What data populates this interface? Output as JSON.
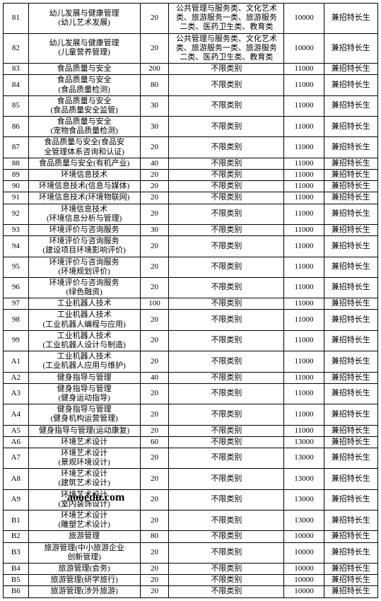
{
  "watermark": "aooedu.com",
  "rows": [
    {
      "id": "81",
      "major": "幼儿发展与健康管理\n(幼儿艺术发展)",
      "quota": "20",
      "category": "公共管理与服务类、文化艺术\n类、旅游服务一类、旅游服务\n二类、医药卫生类、教育类",
      "fee": "10000",
      "note": "兼招特长生"
    },
    {
      "id": "82",
      "major": "幼儿发展与健康管理\n(儿童营养管理)",
      "quota": "20",
      "category": "公共管理与服务类、文化艺术\n类、旅游服务一类、旅游服务\n二类、医药卫生类、教育类",
      "fee": "10000",
      "note": "兼招特长生"
    },
    {
      "id": "83",
      "major": "食品质量与安全",
      "quota": "200",
      "category": "不限类别",
      "fee": "11000",
      "note": "兼招特长生"
    },
    {
      "id": "84",
      "major": "食品质量与安全\n(食品质量检测)",
      "quota": "80",
      "category": "不限类别",
      "fee": "11000",
      "note": "兼招特长生"
    },
    {
      "id": "85",
      "major": "食品质量与安全\n(食品质量安全监管)",
      "quota": "30",
      "category": "不限类别",
      "fee": "11000",
      "note": "兼招特长生"
    },
    {
      "id": "86",
      "major": "食品质量与安全\n(宠物食品质量检测)",
      "quota": "30",
      "category": "不限类别",
      "fee": "11000",
      "note": "兼招特长生"
    },
    {
      "id": "87",
      "major": "食品质量与安全(食品安\n全管理体系咨询和认证)",
      "quota": "20",
      "category": "不限类别",
      "fee": "11000",
      "note": "兼招特长生"
    },
    {
      "id": "88",
      "major": "食品质量与安全(有机产业)",
      "quota": "40",
      "category": "不限类别",
      "fee": "11000",
      "note": "兼招特长生"
    },
    {
      "id": "89",
      "major": "环境信息技术",
      "quota": "20",
      "category": "不限类别",
      "fee": "11000",
      "note": "兼招特长生"
    },
    {
      "id": "90",
      "major": "环境信息技术(信息与媒体)",
      "quota": "20",
      "category": "不限类别",
      "fee": "11000",
      "note": "兼招特长生"
    },
    {
      "id": "91",
      "major": "环境信息技术(环境物联网)",
      "quota": "20",
      "category": "不限类别",
      "fee": "11000",
      "note": "兼招特长生"
    },
    {
      "id": "92",
      "major": "环境信息技术\n(环境信息分析与管理)",
      "quota": "20",
      "category": "不限类别",
      "fee": "11000",
      "note": "兼招特长生"
    },
    {
      "id": "93",
      "major": "环境评价与咨询服务",
      "quota": "30",
      "category": "不限类别",
      "fee": "11000",
      "note": "兼招特长生"
    },
    {
      "id": "94",
      "major": "环境评价与咨询服务\n(建设项目环境影响评价)",
      "quota": "20",
      "category": "不限类别",
      "fee": "11000",
      "note": "兼招特长生"
    },
    {
      "id": "95",
      "major": "环境评价与咨询服务\n(环境规划评价)",
      "quota": "20",
      "category": "不限类别",
      "fee": "11000",
      "note": "兼招特长生"
    },
    {
      "id": "96",
      "major": "环境评价与咨询服务\n(绿色融资)",
      "quota": "20",
      "category": "不限类别",
      "fee": "11000",
      "note": "兼招特长生"
    },
    {
      "id": "97",
      "major": "工业机器人技术",
      "quota": "100",
      "category": "不限类别",
      "fee": "11000",
      "note": "兼招特长生"
    },
    {
      "id": "98",
      "major": "工业机器人技术\n(工业机器人编程与应用)",
      "quota": "20",
      "category": "不限类别",
      "fee": "11000",
      "note": "兼招特长生"
    },
    {
      "id": "99",
      "major": "工业机器人技术\n(工业机器人设计与制造)",
      "quota": "20",
      "category": "不限类别",
      "fee": "11000",
      "note": "兼招特长生"
    },
    {
      "id": "A1",
      "major": "工业机器人技术\n(工业机器人应用与维护)",
      "quota": "20",
      "category": "不限类别",
      "fee": "11000",
      "note": "兼招特长生"
    },
    {
      "id": "A2",
      "major": "健身指导与管理",
      "quota": "40",
      "category": "不限类别",
      "fee": "11000",
      "note": "兼招特长生"
    },
    {
      "id": "A3",
      "major": "健身指导与管理\n(健身运动指导)",
      "quota": "20",
      "category": "不限类别",
      "fee": "11000",
      "note": "兼招特长生"
    },
    {
      "id": "A4",
      "major": "健身指导与管理\n(健身机构运营管理)",
      "quota": "20",
      "category": "不限类别",
      "fee": "11000",
      "note": "兼招特长生"
    },
    {
      "id": "A5",
      "major": "健身指导与管理(运动康复)",
      "quota": "20",
      "category": "不限类别",
      "fee": "11000",
      "note": "兼招特长生"
    },
    {
      "id": "A6",
      "major": "环境艺术设计",
      "quota": "60",
      "category": "不限类别",
      "fee": "13000",
      "note": "兼招特长生"
    },
    {
      "id": "A7",
      "major": "环境艺术设计\n(景观环境设计)",
      "quota": "20",
      "category": "不限类别",
      "fee": "13000",
      "note": "兼招特长生"
    },
    {
      "id": "A8",
      "major": "环境艺术设计\n(建筑艺术设计)",
      "quota": "20",
      "category": "不限类别",
      "fee": "13000",
      "note": "兼招特长生"
    },
    {
      "id": "A9",
      "major": "环境艺术设计\n(室内装饰设计)",
      "quota": "20",
      "category": "不限类别",
      "fee": "13000",
      "note": "兼招特长生"
    },
    {
      "id": "B1",
      "major": "环境艺术设计\n(雕塑艺术设计)",
      "quota": "20",
      "category": "不限类别",
      "fee": "13000",
      "note": "兼招特长生"
    },
    {
      "id": "B2",
      "major": "旅游管理",
      "quota": "80",
      "category": "不限类别",
      "fee": "10000",
      "note": "兼招特长生"
    },
    {
      "id": "B3",
      "major": "旅游管理(中小旅游企业\n创新管理)",
      "quota": "20",
      "category": "不限类别",
      "fee": "10000",
      "note": "兼招特长生"
    },
    {
      "id": "B4",
      "major": "旅游管理(会务)",
      "quota": "20",
      "category": "不限类别",
      "fee": "10000",
      "note": "兼招特长生"
    },
    {
      "id": "B5",
      "major": "旅游管理(研学旅行)",
      "quota": "20",
      "category": "不限类别",
      "fee": "10000",
      "note": "兼招特长生"
    },
    {
      "id": "B6",
      "major": "旅游管理(涉外旅游)",
      "quota": "20",
      "category": "不限类别",
      "fee": "10000",
      "note": "兼招特长生"
    }
  ]
}
